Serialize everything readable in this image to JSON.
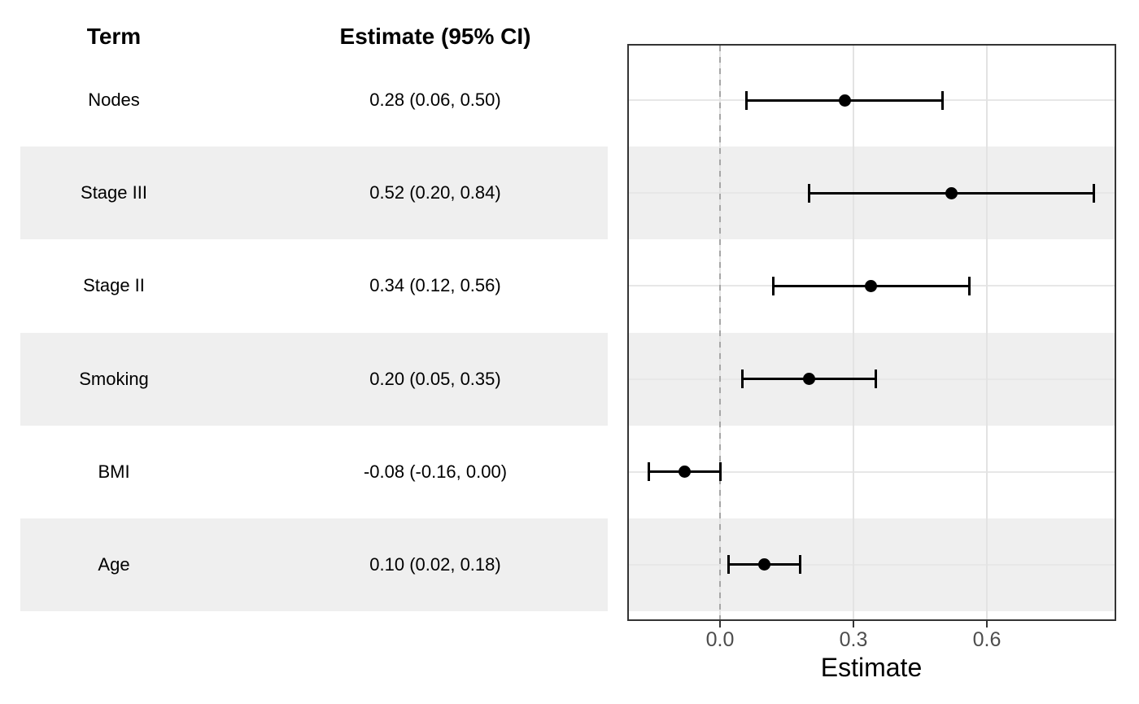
{
  "table": {
    "term_header": "Term",
    "estimate_header": "Estimate (95% CI)"
  },
  "chart_data": {
    "type": "forest",
    "title": "",
    "xlabel": "Estimate",
    "ylabel": "",
    "x_ticks": [
      0.0,
      0.3,
      0.6
    ],
    "x_tick_labels": [
      "0.0",
      "0.3",
      "0.6"
    ],
    "xlim": [
      -0.21,
      0.89
    ],
    "reference_line_x": 0.0,
    "grid": true,
    "legend_position": "none",
    "rows": [
      {
        "term": "Nodes",
        "estimate": 0.28,
        "ci_low": 0.06,
        "ci_high": 0.5,
        "label": "0.28 (0.06, 0.50)",
        "shaded": false
      },
      {
        "term": "Stage III",
        "estimate": 0.52,
        "ci_low": 0.2,
        "ci_high": 0.84,
        "label": "0.52 (0.20, 0.84)",
        "shaded": true
      },
      {
        "term": "Stage II",
        "estimate": 0.34,
        "ci_low": 0.12,
        "ci_high": 0.56,
        "label": "0.34 (0.12, 0.56)",
        "shaded": false
      },
      {
        "term": "Smoking",
        "estimate": 0.2,
        "ci_low": 0.05,
        "ci_high": 0.35,
        "label": "0.20 (0.05, 0.35)",
        "shaded": true
      },
      {
        "term": "BMI",
        "estimate": -0.08,
        "ci_low": -0.16,
        "ci_high": 0.0,
        "label": "-0.08 (-0.16, 0.00)",
        "shaded": false
      },
      {
        "term": "Age",
        "estimate": 0.1,
        "ci_low": 0.02,
        "ci_high": 0.18,
        "label": "0.10 (0.02, 0.18)",
        "shaded": true
      }
    ]
  },
  "colors": {
    "stripe": "#efefef",
    "grid_h": "#e7e7e7",
    "grid_v": "#e3e3e3",
    "reference_line": "#a6a6a6",
    "panel_border": "#343434",
    "marker": "#000000",
    "tick_label": "#4d4d4d",
    "background": "#ffffff"
  }
}
